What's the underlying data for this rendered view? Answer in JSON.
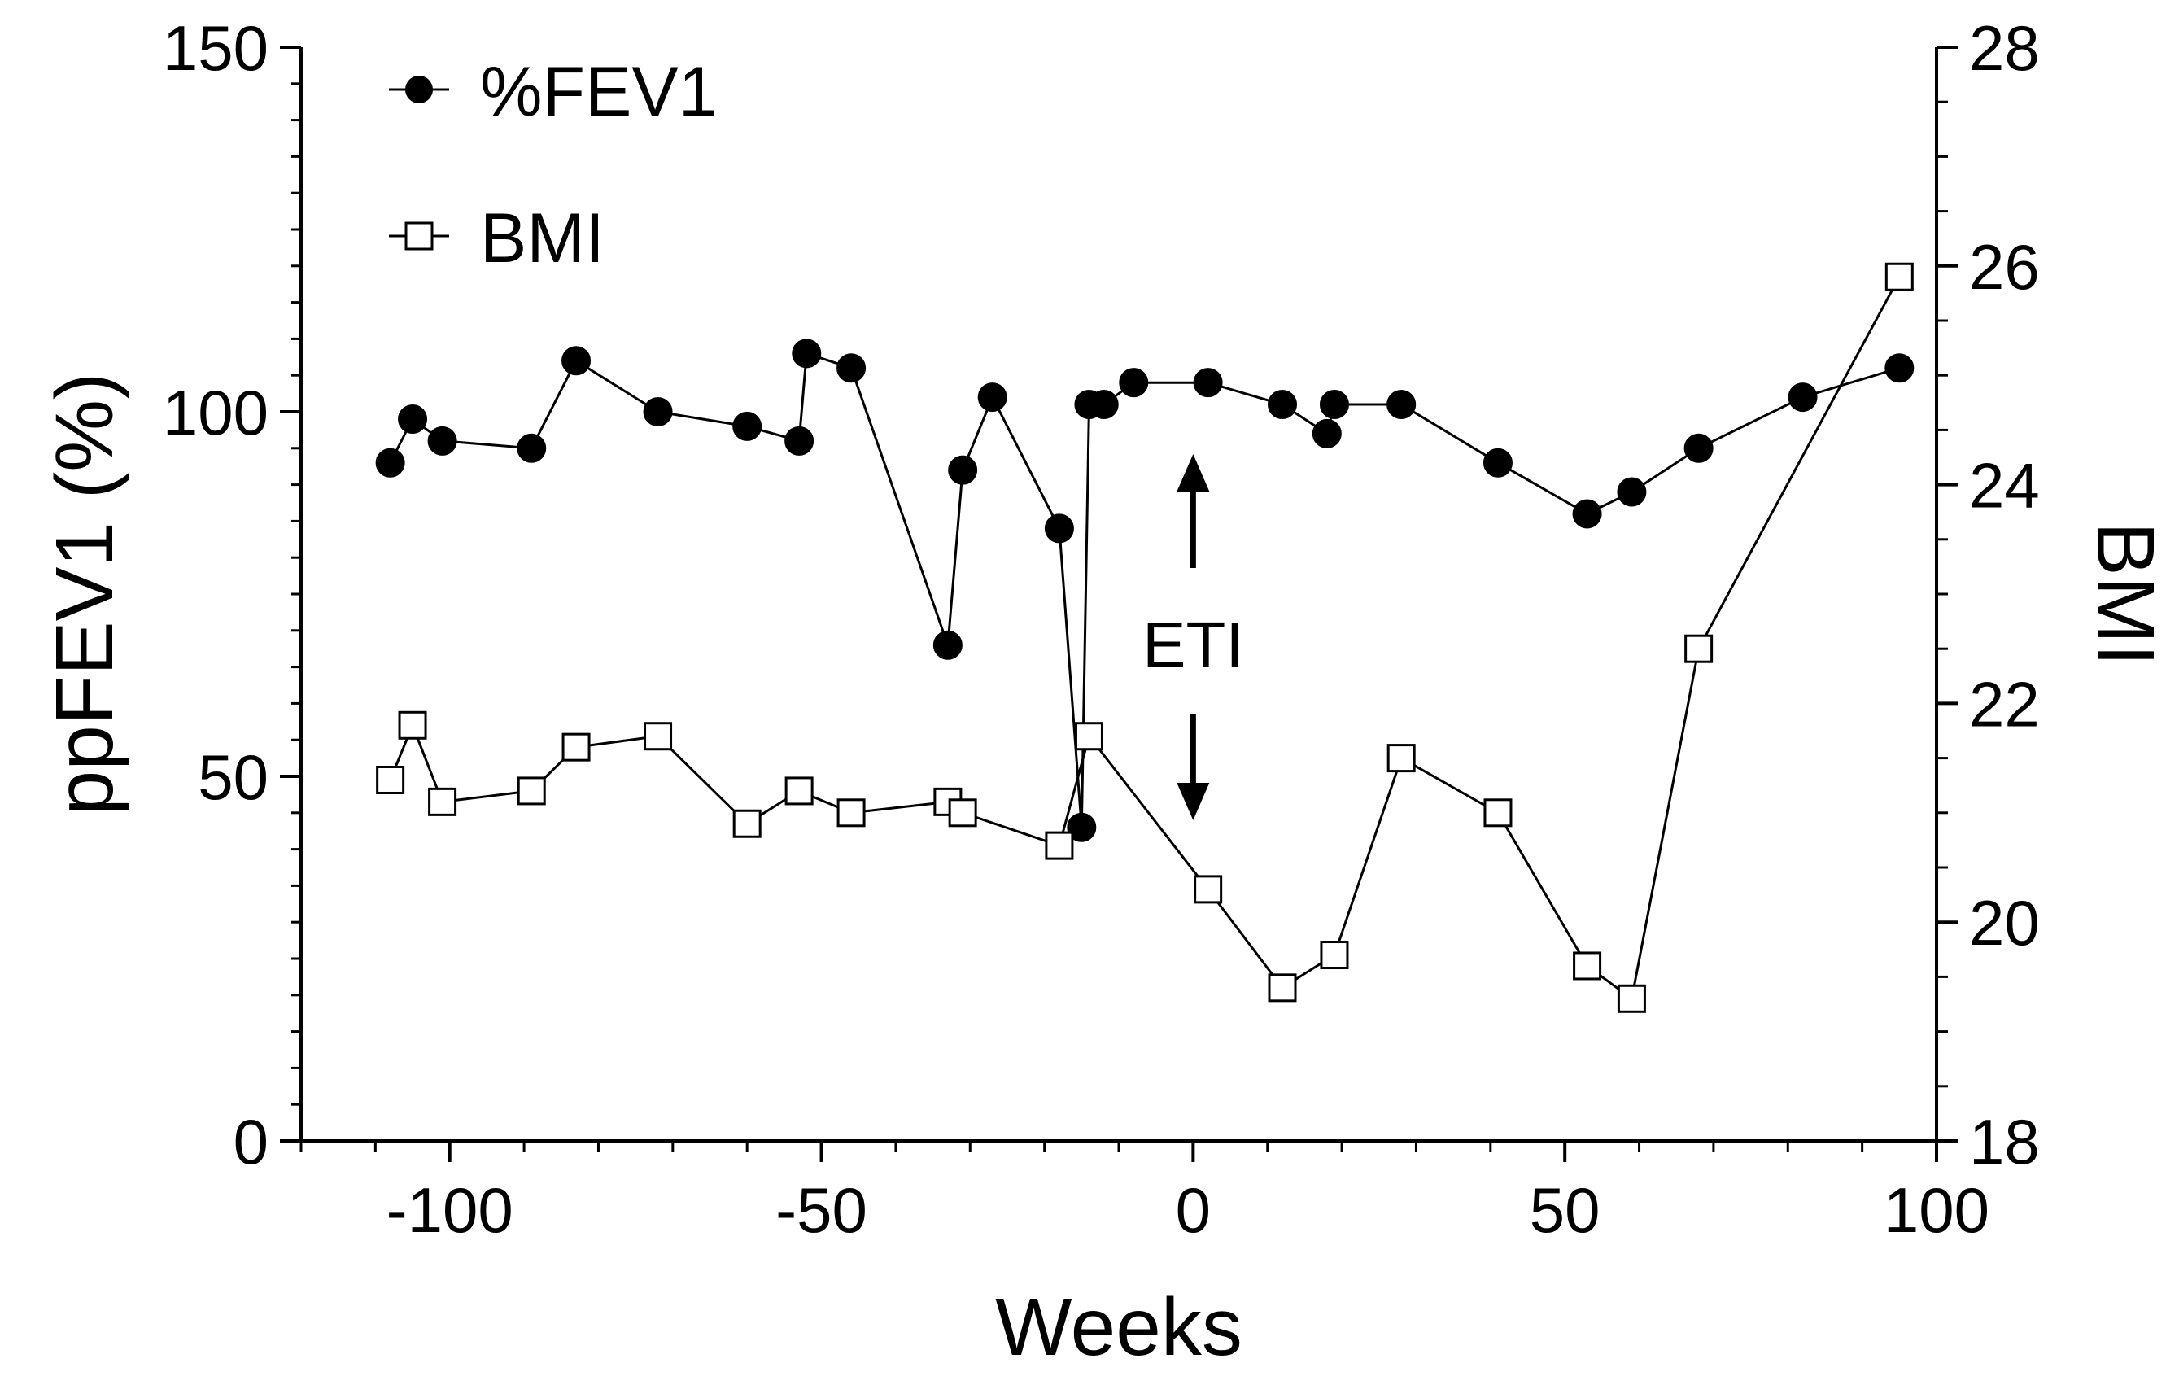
{
  "chart_data": {
    "type": "line",
    "title": "",
    "xlabel": "Weeks",
    "ylabel": "ppFEV1 (%)",
    "y2label": "BMI",
    "xlim": [
      -120,
      100
    ],
    "ylim": [
      0,
      150
    ],
    "y2lim": [
      18,
      28
    ],
    "xticks": [
      -100,
      -50,
      0,
      50,
      100
    ],
    "yticks": [
      0,
      50,
      100,
      150
    ],
    "y2ticks": [
      18,
      20,
      22,
      24,
      26,
      28
    ],
    "x_minor_step": 10,
    "y_minor_step": 5,
    "y2_minor_step": 0.5,
    "legend_position": "top-left",
    "series": [
      {
        "name": "%FEV1",
        "axis": "left",
        "marker": "filled-circle",
        "color": "#000000",
        "x": [
          -108,
          -105,
          -101,
          -89,
          -83,
          -72,
          -60,
          -53,
          -52,
          -46,
          -33,
          -31,
          -27,
          -18,
          -15,
          -14,
          -12,
          -8,
          2,
          12,
          18,
          19,
          28,
          41,
          53,
          59,
          68,
          82,
          95
        ],
        "y": [
          93,
          99,
          96,
          95,
          107,
          100,
          98,
          96,
          108,
          106,
          68,
          92,
          102,
          84,
          43,
          101,
          101,
          104,
          104,
          101,
          97,
          101,
          101,
          93,
          86,
          89,
          95,
          102,
          106
        ]
      },
      {
        "name": "BMI",
        "axis": "right",
        "marker": "open-square",
        "color": "#000000",
        "x": [
          -108,
          -105,
          -101,
          -89,
          -83,
          -72,
          -60,
          -53,
          -46,
          -33,
          -31,
          -18,
          -14,
          2,
          12,
          19,
          28,
          41,
          53,
          59,
          68,
          95
        ],
        "y": [
          21.3,
          21.8,
          21.1,
          21.2,
          21.6,
          21.7,
          20.9,
          21.2,
          21.0,
          21.1,
          21.0,
          20.7,
          21.7,
          20.3,
          19.4,
          19.7,
          21.5,
          21.0,
          19.6,
          19.3,
          22.5,
          25.9
        ]
      }
    ],
    "annotations": [
      {
        "text": "ETI",
        "x": 0,
        "style": "double-arrow-vertical"
      }
    ]
  }
}
